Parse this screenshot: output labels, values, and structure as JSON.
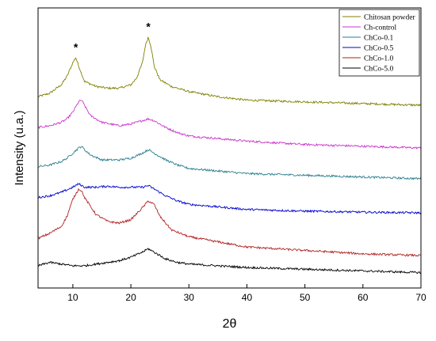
{
  "chart_data": {
    "type": "line",
    "title": "",
    "xlabel": "2θ",
    "ylabel": "Intensity (u.a.)",
    "xlim": [
      4,
      70
    ],
    "x_ticks": [
      10,
      20,
      30,
      40,
      50,
      60,
      70
    ],
    "y_ticks_shown": false,
    "grid": false,
    "legend_position": "top-right",
    "annotations": [
      {
        "text": "*",
        "x": 10.5,
        "series": "Chitosan powder"
      },
      {
        "text": "*",
        "x": 23.0,
        "series": "Chitosan powder"
      }
    ],
    "series": [
      {
        "name": "Chitosan powder",
        "color": "#808000",
        "points": [
          [
            4,
            3.6
          ],
          [
            6,
            3.7
          ],
          [
            8,
            3.95
          ],
          [
            9,
            4.2
          ],
          [
            10,
            4.6
          ],
          [
            10.5,
            4.75
          ],
          [
            11,
            4.5
          ],
          [
            12,
            4.05
          ],
          [
            14,
            3.9
          ],
          [
            16,
            3.85
          ],
          [
            18,
            3.85
          ],
          [
            20,
            3.95
          ],
          [
            21,
            4.15
          ],
          [
            22,
            4.6
          ],
          [
            22.5,
            5.1
          ],
          [
            23,
            5.35
          ],
          [
            23.5,
            5.05
          ],
          [
            24,
            4.5
          ],
          [
            25,
            4.1
          ],
          [
            27,
            3.9
          ],
          [
            30,
            3.75
          ],
          [
            35,
            3.6
          ],
          [
            40,
            3.5
          ],
          [
            50,
            3.45
          ],
          [
            60,
            3.4
          ],
          [
            70,
            3.35
          ]
        ]
      },
      {
        "name": "Ch-control",
        "color": "#cc33cc",
        "points": [
          [
            4,
            2.7
          ],
          [
            6,
            2.75
          ],
          [
            8,
            2.85
          ],
          [
            9,
            2.95
          ],
          [
            10,
            3.15
          ],
          [
            11,
            3.45
          ],
          [
            11.5,
            3.5
          ],
          [
            12,
            3.35
          ],
          [
            13,
            3.05
          ],
          [
            15,
            2.85
          ],
          [
            18,
            2.75
          ],
          [
            20,
            2.8
          ],
          [
            22,
            2.9
          ],
          [
            23,
            2.95
          ],
          [
            24,
            2.9
          ],
          [
            26,
            2.7
          ],
          [
            28,
            2.55
          ],
          [
            30,
            2.45
          ],
          [
            40,
            2.3
          ],
          [
            50,
            2.2
          ],
          [
            60,
            2.15
          ],
          [
            70,
            2.1
          ]
        ]
      },
      {
        "name": "ChCo-0.1",
        "color": "#2a7f8f",
        "points": [
          [
            4,
            1.55
          ],
          [
            6,
            1.6
          ],
          [
            8,
            1.7
          ],
          [
            9,
            1.8
          ],
          [
            10,
            1.95
          ],
          [
            11,
            2.1
          ],
          [
            11.5,
            2.15
          ],
          [
            12,
            2.05
          ],
          [
            13,
            1.9
          ],
          [
            15,
            1.75
          ],
          [
            18,
            1.75
          ],
          [
            20,
            1.8
          ],
          [
            22,
            1.95
          ],
          [
            23,
            2.05
          ],
          [
            24,
            1.95
          ],
          [
            26,
            1.75
          ],
          [
            28,
            1.6
          ],
          [
            30,
            1.5
          ],
          [
            40,
            1.35
          ],
          [
            50,
            1.3
          ],
          [
            60,
            1.25
          ],
          [
            70,
            1.2
          ]
        ]
      },
      {
        "name": "ChCo-0.5",
        "color": "#0000cc",
        "points": [
          [
            4,
            0.65
          ],
          [
            6,
            0.7
          ],
          [
            8,
            0.8
          ],
          [
            10,
            0.95
          ],
          [
            11,
            1.05
          ],
          [
            12,
            0.95
          ],
          [
            14,
            0.95
          ],
          [
            16,
            0.98
          ],
          [
            18,
            0.95
          ],
          [
            20,
            0.95
          ],
          [
            22,
            0.95
          ],
          [
            23,
            1.0
          ],
          [
            24,
            0.9
          ],
          [
            26,
            0.7
          ],
          [
            28,
            0.55
          ],
          [
            30,
            0.45
          ],
          [
            40,
            0.3
          ],
          [
            50,
            0.25
          ],
          [
            60,
            0.22
          ],
          [
            70,
            0.2
          ]
        ]
      },
      {
        "name": "ChCo-1.0",
        "color": "#b22222",
        "points": [
          [
            4,
            -0.55
          ],
          [
            6,
            -0.4
          ],
          [
            8,
            -0.2
          ],
          [
            9,
            0.1
          ],
          [
            10,
            0.6
          ],
          [
            11,
            0.9
          ],
          [
            11.5,
            0.85
          ],
          [
            12,
            0.65
          ],
          [
            14,
            0.15
          ],
          [
            16,
            -0.05
          ],
          [
            18,
            -0.1
          ],
          [
            20,
            0.0
          ],
          [
            22,
            0.35
          ],
          [
            23,
            0.55
          ],
          [
            24,
            0.45
          ],
          [
            25,
            0.1
          ],
          [
            27,
            -0.3
          ],
          [
            30,
            -0.5
          ],
          [
            35,
            -0.65
          ],
          [
            40,
            -0.8
          ],
          [
            50,
            -0.9
          ],
          [
            60,
            -1.0
          ],
          [
            70,
            -1.05
          ]
        ]
      },
      {
        "name": "ChCo-5.0",
        "color": "#000000",
        "points": [
          [
            4,
            -1.35
          ],
          [
            6,
            -1.25
          ],
          [
            8,
            -1.3
          ],
          [
            10,
            -1.35
          ],
          [
            12,
            -1.35
          ],
          [
            14,
            -1.3
          ],
          [
            16,
            -1.25
          ],
          [
            18,
            -1.2
          ],
          [
            20,
            -1.1
          ],
          [
            22,
            -0.95
          ],
          [
            23,
            -0.85
          ],
          [
            24,
            -0.95
          ],
          [
            26,
            -1.15
          ],
          [
            28,
            -1.25
          ],
          [
            30,
            -1.3
          ],
          [
            40,
            -1.4
          ],
          [
            50,
            -1.45
          ],
          [
            60,
            -1.5
          ],
          [
            70,
            -1.55
          ]
        ]
      }
    ]
  }
}
